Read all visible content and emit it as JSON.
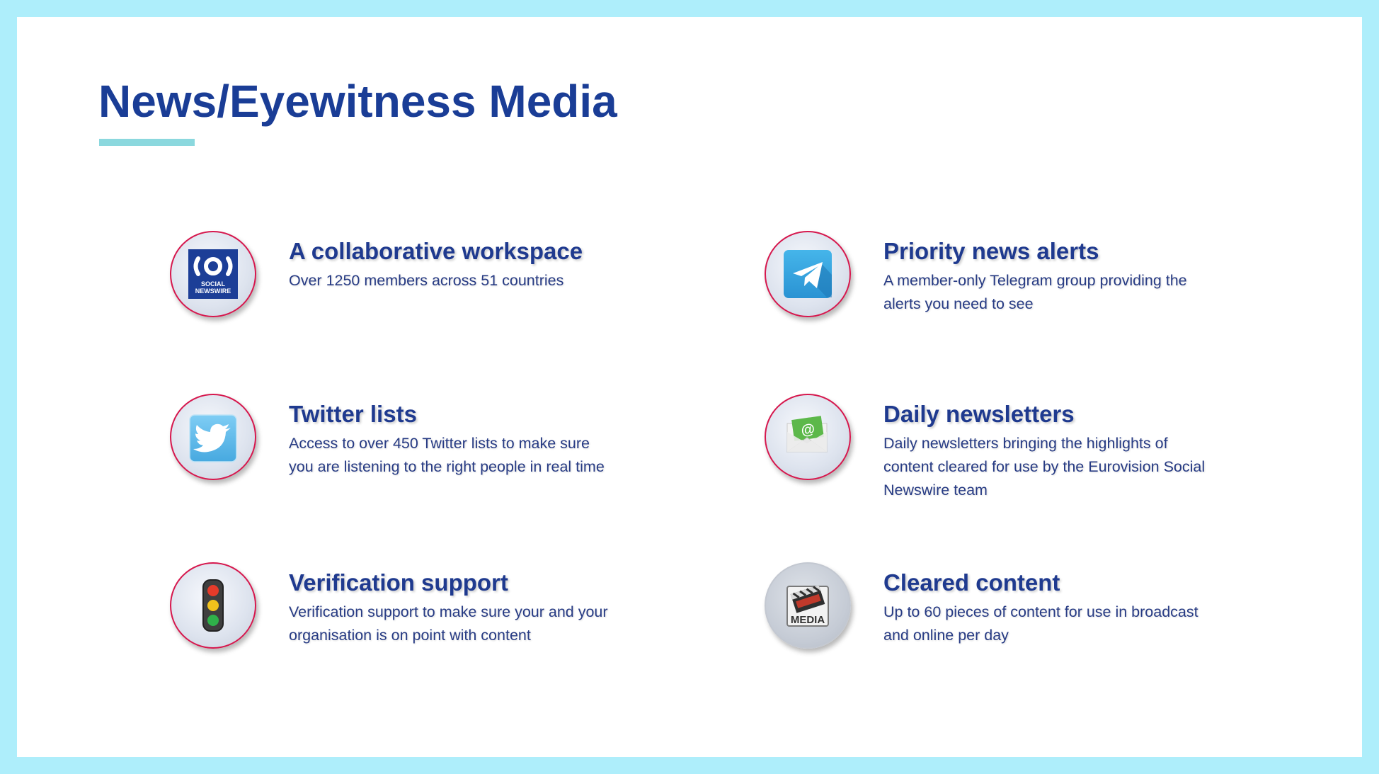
{
  "slide": {
    "title": "News/Eyewitness Media"
  },
  "colors": {
    "frame": "#aeeefb",
    "title": "#1a3d96",
    "accent_bar": "#8bd8de",
    "icon_ring": "#d6174d"
  },
  "features": [
    {
      "title": "A collaborative workspace",
      "description": "Over 1250 members across 51 countries",
      "icon": "social-newswire-logo-icon",
      "logo_text": [
        "SOCIAL",
        "NEWSWIRE"
      ]
    },
    {
      "title": "Priority news alerts",
      "description": "A member-only Telegram group providing the alerts you need to see",
      "icon": "telegram-icon"
    },
    {
      "title": "Twitter lists",
      "description": "Access to over 450 Twitter lists to make sure you are listening to the right people in real time",
      "icon": "twitter-bird-icon"
    },
    {
      "title": "Daily newsletters",
      "description": "Daily newsletters bringing the highlights of content cleared for use by the Eurovision Social Newswire team",
      "icon": "email-envelope-icon"
    },
    {
      "title": "Verification support",
      "description": "Verification support to make sure your and your organisation is on point with content",
      "icon": "traffic-light-icon"
    },
    {
      "title": "Cleared content",
      "description": "Up to 60 pieces of content for use in broadcast and online per day",
      "icon": "media-clapperboard-icon",
      "logo_text": "MEDIA"
    }
  ]
}
